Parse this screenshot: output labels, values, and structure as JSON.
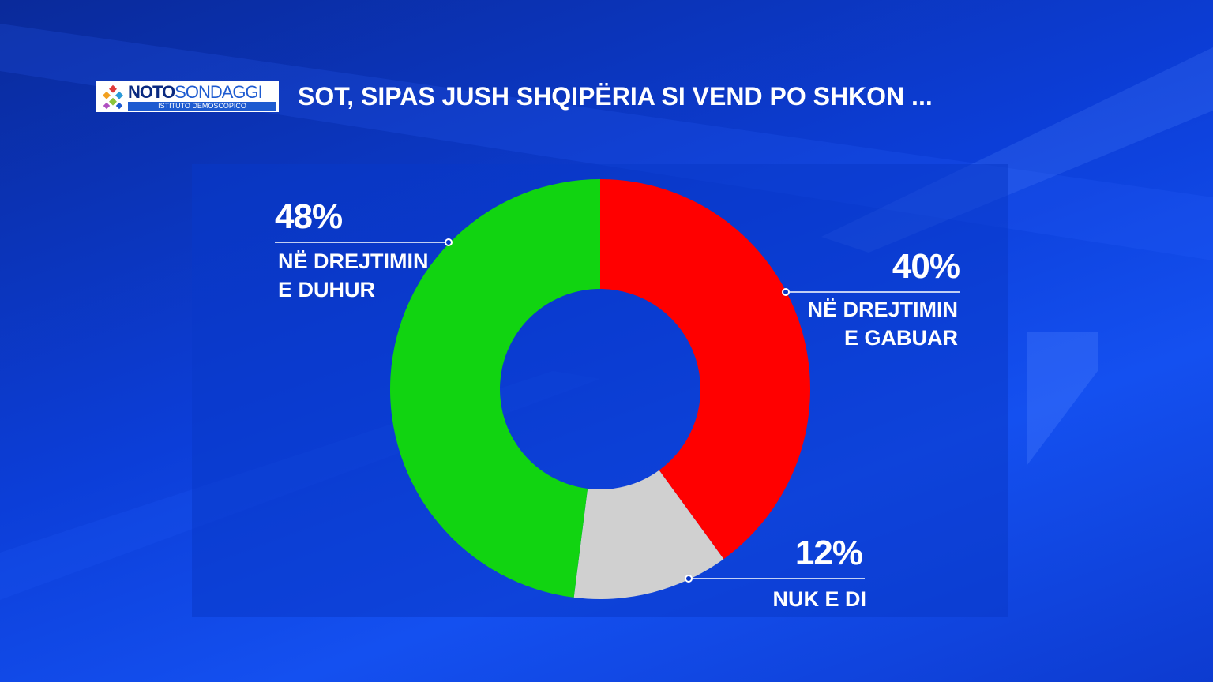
{
  "logo": {
    "brand_a": "NOTO",
    "brand_b": "SONDAGGI",
    "tagline": "ISTITUTO DEMOSCOPICO"
  },
  "chart_data": {
    "type": "pie",
    "donut": true,
    "title": "SOT, SIPAS JUSH SHQIPËRIA SI VEND PO SHKON ...",
    "categories": [
      "NË DREJTIMIN E GABUAR",
      "NUK E DI",
      "NË DREJTIMIN E DUHUR"
    ],
    "values": [
      40,
      12,
      48
    ],
    "value_labels": [
      "40%",
      "12%",
      "48%"
    ],
    "colors": [
      "#ff0000",
      "#d0d0d0",
      "#11d411"
    ]
  }
}
